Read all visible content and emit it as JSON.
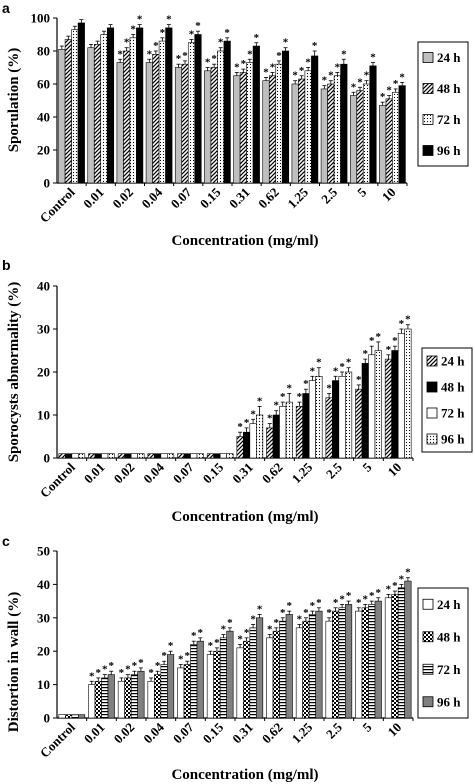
{
  "chart_data": [
    {
      "panel": "a",
      "type": "bar",
      "ylabel": "Sporulation (%)",
      "xlabel": "Concentration (mg/ml)",
      "ylim": [
        0,
        100
      ],
      "yticks": [
        0,
        20,
        40,
        60,
        80,
        100
      ],
      "categories": [
        "Control",
        "0.01",
        "0.02",
        "0.04",
        "0.07",
        "0.15",
        "0.31",
        "0.62",
        "1.25",
        "2.5",
        "5",
        "10"
      ],
      "legend_position": "right",
      "series": [
        {
          "name": "24 h",
          "color": "#bfbfbf",
          "pattern": "solid",
          "values": [
            81,
            82,
            73,
            73,
            70,
            68,
            65,
            62,
            60,
            57,
            53,
            47
          ],
          "errors": [
            2,
            2,
            2,
            2,
            2,
            2,
            2,
            2,
            2,
            2,
            2,
            2
          ],
          "stars": [
            "",
            "",
            "*",
            "*",
            "*",
            "*",
            "*",
            "*",
            "*",
            "*",
            "*",
            "*"
          ]
        },
        {
          "name": "48 h",
          "color": "#000000",
          "pattern": "diag",
          "values": [
            87,
            84,
            80,
            78,
            72,
            70,
            67,
            65,
            63,
            60,
            56,
            51
          ],
          "errors": [
            2,
            2,
            2,
            2,
            2,
            2,
            2,
            2,
            2,
            2,
            2,
            2
          ],
          "stars": [
            "",
            "",
            "*",
            "*",
            "*",
            "*",
            "*",
            "*",
            "*",
            "*",
            "*",
            "*"
          ]
        },
        {
          "name": "72 h",
          "color": "#ffffff",
          "pattern": "dots",
          "values": [
            93,
            90,
            88,
            86,
            85,
            80,
            73,
            72,
            68,
            65,
            60,
            55
          ],
          "errors": [
            2,
            2,
            2,
            2,
            2,
            2,
            2,
            2,
            2,
            2,
            2,
            2
          ],
          "stars": [
            "",
            "",
            "*",
            "*",
            "*",
            "*",
            "*",
            "*",
            "*",
            "*",
            "*",
            "*"
          ]
        },
        {
          "name": "96 h",
          "color": "#000000",
          "pattern": "solid",
          "values": [
            97,
            94,
            94,
            94,
            90,
            86,
            83,
            80,
            77,
            72,
            71,
            59
          ],
          "errors": [
            2,
            2,
            2,
            2,
            2,
            2,
            2,
            2,
            3,
            3,
            2,
            2
          ],
          "stars": [
            "",
            "",
            "*",
            "*",
            "*",
            "*",
            "*",
            "*",
            "*",
            "*",
            "*",
            "*"
          ]
        }
      ]
    },
    {
      "panel": "b",
      "type": "bar",
      "ylabel": "Sporocysts abnormality (%)",
      "xlabel": "Concentration (mg/ml)",
      "ylim": [
        0,
        40
      ],
      "yticks": [
        0,
        10,
        20,
        30,
        40
      ],
      "categories": [
        "Control",
        "0.01",
        "0.02",
        "0.04",
        "0.07",
        "0.15",
        "0.31",
        "0.62",
        "1.25",
        "2.5",
        "5",
        "10"
      ],
      "legend_position": "right",
      "series": [
        {
          "name": "24 h",
          "color": "#bfbfbf",
          "pattern": "diag",
          "values": [
            1,
            1,
            1,
            1,
            1,
            1,
            5,
            7,
            12,
            14,
            16,
            23
          ],
          "errors": [
            0,
            0,
            0,
            0,
            0,
            0,
            1,
            1,
            1,
            1,
            1,
            1
          ],
          "stars": [
            "",
            "",
            "",
            "",
            "",
            "",
            "*",
            "*",
            "*",
            "*",
            "*",
            "*"
          ]
        },
        {
          "name": "48 h",
          "color": "#000000",
          "pattern": "solid",
          "values": [
            1,
            1,
            1,
            1,
            1,
            1,
            6,
            10,
            15,
            18,
            22,
            25
          ],
          "errors": [
            0,
            0,
            0,
            0,
            0,
            0,
            1,
            1,
            1,
            1,
            1,
            1
          ],
          "stars": [
            "",
            "",
            "",
            "",
            "",
            "",
            "*",
            "*",
            "*",
            "*",
            "*",
            "*"
          ]
        },
        {
          "name": "72 h",
          "color": "#ffffff",
          "pattern": "solid",
          "values": [
            1,
            1,
            1,
            1,
            1,
            1,
            8,
            12,
            18,
            19,
            24,
            29
          ],
          "errors": [
            0,
            0,
            0,
            0,
            0,
            0,
            1,
            1,
            1,
            1,
            2,
            1
          ],
          "stars": [
            "",
            "",
            "",
            "",
            "",
            "",
            "*",
            "*",
            "*",
            "*",
            "*",
            "*"
          ]
        },
        {
          "name": "96 h",
          "color": "#bfbfbf",
          "pattern": "dots",
          "values": [
            1,
            1,
            1,
            1,
            1,
            1,
            10,
            13,
            19,
            20,
            25,
            30
          ],
          "errors": [
            0,
            0,
            0,
            0,
            0,
            0,
            2,
            2,
            2,
            1,
            2,
            1
          ],
          "stars": [
            "",
            "",
            "",
            "",
            "",
            "",
            "*",
            "*",
            "*",
            "*",
            "*",
            "*"
          ]
        }
      ]
    },
    {
      "panel": "c",
      "type": "bar",
      "ylabel": "Distortion in wall (%)",
      "xlabel": "Concentration (mg/ml)",
      "ylim": [
        0,
        50
      ],
      "yticks": [
        0,
        10,
        20,
        30,
        40,
        50
      ],
      "categories": [
        "Control",
        "0.01",
        "0.02",
        "0.04",
        "0.07",
        "0.15",
        "0.31",
        "0.62",
        "1.25",
        "2.5",
        "5",
        "10"
      ],
      "legend_position": "right",
      "series": [
        {
          "name": "24 h",
          "color": "#ffffff",
          "pattern": "solid",
          "values": [
            1,
            10,
            11,
            11,
            15,
            19,
            21,
            24,
            27,
            29,
            32,
            36
          ],
          "errors": [
            0,
            1,
            1,
            1,
            1,
            1,
            1,
            1,
            1,
            1,
            1,
            1
          ],
          "stars": [
            "",
            "*",
            "*",
            "*",
            "*",
            "*",
            "*",
            "*",
            "*",
            "*",
            "*",
            "*"
          ]
        },
        {
          "name": "48 h",
          "color": "#000000",
          "pattern": "check",
          "values": [
            1,
            11,
            12,
            13,
            16,
            20,
            23,
            26,
            29,
            32,
            33,
            37
          ],
          "errors": [
            0,
            1,
            1,
            1,
            1,
            1,
            1,
            1,
            1,
            1,
            1,
            1
          ],
          "stars": [
            "",
            "*",
            "*",
            "*",
            "*",
            "*",
            "*",
            "*",
            "*",
            "*",
            "*",
            "*"
          ]
        },
        {
          "name": "72 h",
          "color": "#ffffff",
          "pattern": "hstripes",
          "values": [
            1,
            12,
            13,
            16,
            22,
            24,
            27,
            29,
            31,
            33,
            34,
            39
          ],
          "errors": [
            0,
            1,
            1,
            1,
            1,
            1,
            1,
            1,
            1,
            1,
            1,
            1
          ],
          "stars": [
            "",
            "*",
            "*",
            "*",
            "*",
            "*",
            "*",
            "*",
            "*",
            "*",
            "*",
            "*"
          ]
        },
        {
          "name": "96 h",
          "color": "#808080",
          "pattern": "solid",
          "values": [
            1,
            13,
            14,
            19,
            23,
            26,
            30,
            31,
            32,
            34,
            35,
            41
          ],
          "errors": [
            0,
            1,
            1,
            1,
            1,
            1,
            1,
            1,
            1,
            1,
            1,
            1
          ],
          "stars": [
            "",
            "*",
            "*",
            "*",
            "*",
            "*",
            "*",
            "*",
            "*",
            "*",
            "*",
            "*"
          ]
        }
      ]
    }
  ]
}
